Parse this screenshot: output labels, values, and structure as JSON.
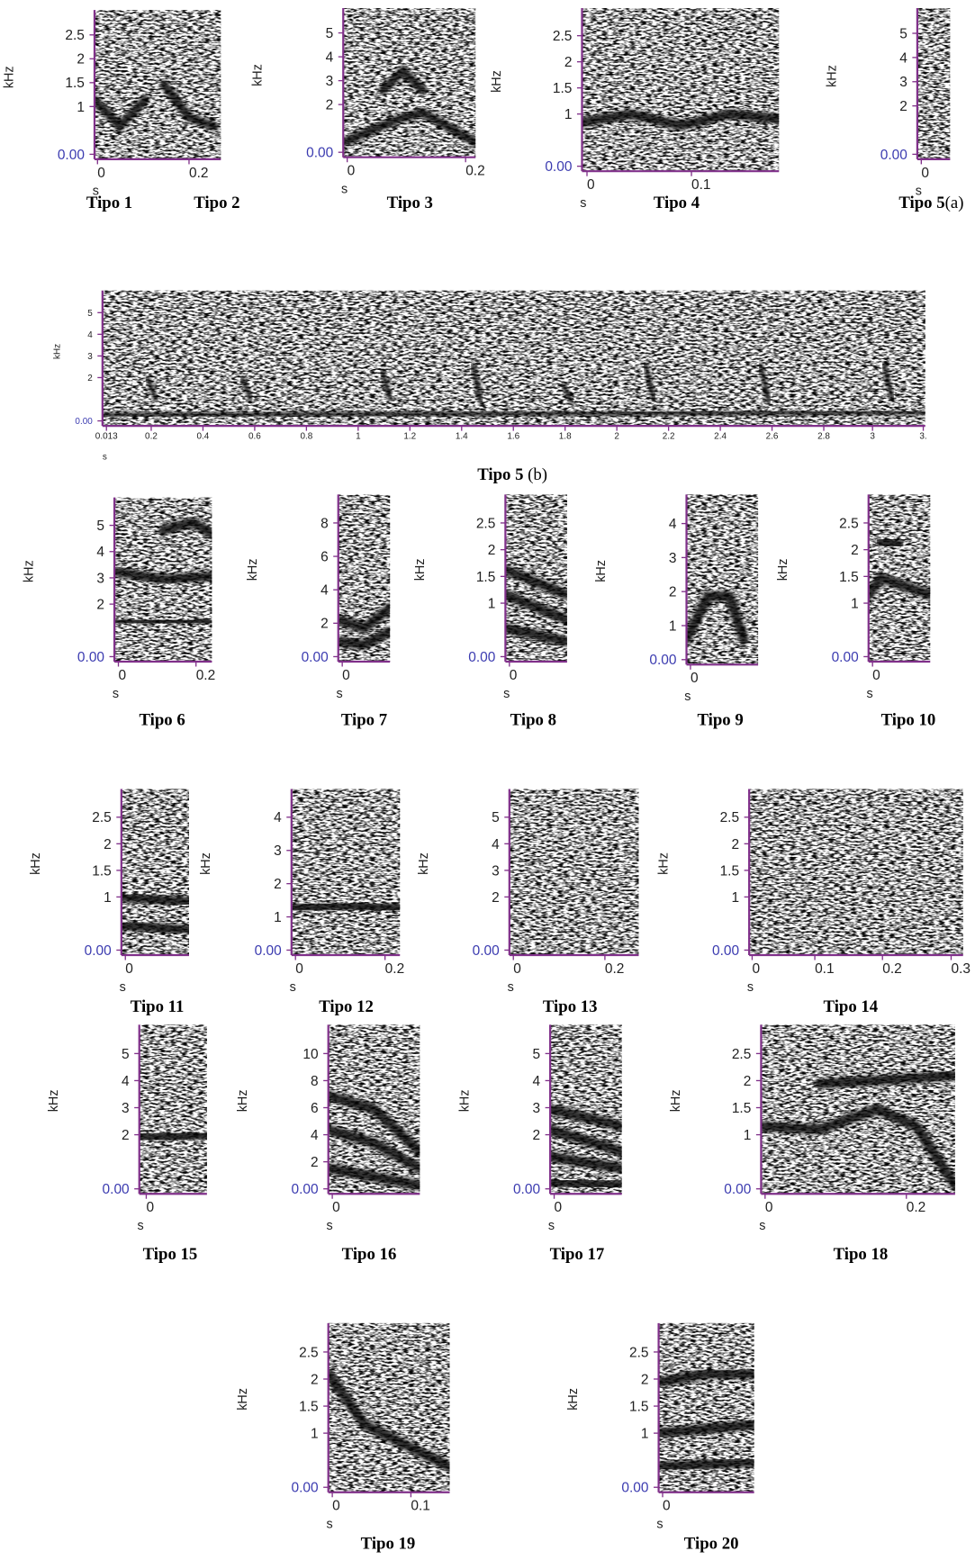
{
  "panels": [
    {
      "y_label": "kHz",
      "x_label": "s",
      "yticks": [
        "2.5",
        "2",
        "1.5",
        "1",
        "0.00"
      ],
      "xticks": [
        "0",
        "0.2"
      ],
      "captions": [
        {
          "label": "Tipo 1"
        },
        {
          "label": "Tipo 2"
        }
      ]
    },
    {
      "y_label": "kHz",
      "x_label": "s",
      "yticks": [
        "5",
        "4",
        "3",
        "2",
        "0.00"
      ],
      "xticks": [
        "0",
        "0.2"
      ],
      "captions": [
        {
          "label": "Tipo 3"
        }
      ]
    },
    {
      "y_label": "kHz",
      "x_label": "s",
      "yticks": [
        "2.5",
        "2",
        "1.5",
        "1",
        "0.00"
      ],
      "xticks": [
        "0",
        "0.1"
      ],
      "captions": [
        {
          "label": "Tipo 4"
        }
      ]
    },
    {
      "y_label": "kHz",
      "x_label": "s",
      "yticks": [
        "5",
        "4",
        "3",
        "2",
        "0.00"
      ],
      "xticks": [
        "0"
      ],
      "captions": [
        {
          "label": "Tipo 5",
          "suffix": "(a)"
        }
      ]
    },
    {
      "y_label": "kHz",
      "x_label": "s",
      "yticks": [
        "5",
        "4",
        "3",
        "2",
        "0.00"
      ],
      "xticks": [
        "0.013",
        "0.2",
        "0.4",
        "0.6",
        "0.8",
        "1",
        "1.2",
        "1.4",
        "1.6",
        "1.8",
        "2",
        "2.2",
        "2.4",
        "2.6",
        "2.8",
        "3",
        "3."
      ],
      "captions": [
        {
          "label": "Tipo 5",
          "suffix": " (b)"
        }
      ]
    },
    {
      "y_label": "kHz",
      "x_label": "s",
      "yticks": [
        "5",
        "4",
        "3",
        "2",
        "0.00"
      ],
      "xticks": [
        "0",
        "0.2"
      ],
      "captions": [
        {
          "label": "Tipo 6"
        }
      ]
    },
    {
      "y_label": "kHz",
      "x_label": "s",
      "yticks": [
        "8",
        "6",
        "4",
        "2",
        "0.00"
      ],
      "xticks": [
        "0"
      ],
      "captions": [
        {
          "label": "Tipo 7"
        }
      ]
    },
    {
      "y_label": "kHz",
      "x_label": "s",
      "yticks": [
        "2.5",
        "2",
        "1.5",
        "1",
        "0.00"
      ],
      "xticks": [
        "0"
      ],
      "captions": [
        {
          "label": "Tipo 8"
        }
      ]
    },
    {
      "y_label": "kHz",
      "x_label": "s",
      "yticks": [
        "4",
        "3",
        "2",
        "1",
        "0.00"
      ],
      "xticks": [
        "0"
      ],
      "captions": [
        {
          "label": "Tipo 9"
        }
      ]
    },
    {
      "y_label": "kHz",
      "x_label": "s",
      "yticks": [
        "2.5",
        "2",
        "1.5",
        "1",
        "0.00"
      ],
      "xticks": [
        "0"
      ],
      "captions": [
        {
          "label": "Tipo 10"
        }
      ]
    },
    {
      "y_label": "kHz",
      "x_label": "s",
      "yticks": [
        "2.5",
        "2",
        "1.5",
        "1",
        "0.00"
      ],
      "xticks": [
        "0"
      ],
      "captions": [
        {
          "label": "Tipo 11"
        }
      ]
    },
    {
      "y_label": "kHz",
      "x_label": "s",
      "yticks": [
        "4",
        "3",
        "2",
        "1",
        "0.00"
      ],
      "xticks": [
        "0",
        "0.2"
      ],
      "captions": [
        {
          "label": "Tipo 12"
        }
      ]
    },
    {
      "y_label": "kHz",
      "x_label": "s",
      "yticks": [
        "5",
        "4",
        "3",
        "2",
        "0.00"
      ],
      "xticks": [
        "0",
        "0.2"
      ],
      "captions": [
        {
          "label": "Tipo 13"
        }
      ]
    },
    {
      "y_label": "kHz",
      "x_label": "s",
      "yticks": [
        "2.5",
        "2",
        "1.5",
        "1",
        "0.00"
      ],
      "xticks": [
        "0",
        "0.1",
        "0.2",
        "0.3"
      ],
      "captions": [
        {
          "label": "Tipo 14"
        }
      ]
    },
    {
      "y_label": "kHz",
      "x_label": "s",
      "yticks": [
        "5",
        "4",
        "3",
        "2",
        "0.00"
      ],
      "xticks": [
        "0"
      ],
      "captions": [
        {
          "label": "Tipo 15"
        }
      ]
    },
    {
      "y_label": "kHz",
      "x_label": "s",
      "yticks": [
        "10",
        "8",
        "6",
        "4",
        "2",
        "0.00"
      ],
      "xticks": [
        "0"
      ],
      "captions": [
        {
          "label": "Tipo 16"
        }
      ]
    },
    {
      "y_label": "kHz",
      "x_label": "s",
      "yticks": [
        "5",
        "4",
        "3",
        "2",
        "0.00"
      ],
      "xticks": [
        "0"
      ],
      "captions": [
        {
          "label": "Tipo 17"
        }
      ]
    },
    {
      "y_label": "kHz",
      "x_label": "s",
      "yticks": [
        "2.5",
        "2",
        "1.5",
        "1",
        "0.00"
      ],
      "xticks": [
        "0",
        "0.2"
      ],
      "captions": [
        {
          "label": "Tipo 18"
        }
      ]
    },
    {
      "y_label": "kHz",
      "x_label": "s",
      "yticks": [
        "2.5",
        "2",
        "1.5",
        "1",
        "0.00"
      ],
      "xticks": [
        "0",
        "0.1"
      ],
      "captions": [
        {
          "label": "Tipo 19"
        }
      ]
    },
    {
      "y_label": "kHz",
      "x_label": "s",
      "yticks": [
        "2.5",
        "2",
        "1.5",
        "1",
        "0.00"
      ],
      "xticks": [
        "0"
      ],
      "captions": [
        {
          "label": "Tipo 20"
        }
      ]
    }
  ]
}
